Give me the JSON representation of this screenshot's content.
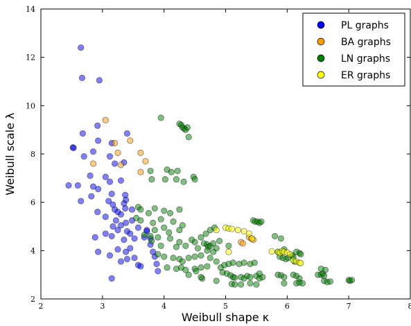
{
  "chart_data": {
    "type": "scatter",
    "title": "",
    "xlabel": "Weibull shape κ",
    "ylabel": "Weibull scale λ",
    "xlim": [
      2,
      8
    ],
    "ylim": [
      2,
      14
    ],
    "xticks": [
      "2",
      "3",
      "4",
      "5",
      "6",
      "7",
      "8"
    ],
    "yticks": [
      "2",
      "4",
      "6",
      "8",
      "10",
      "12",
      "14"
    ],
    "xtick_values": [
      2,
      3,
      4,
      5,
      6,
      7,
      8
    ],
    "ytick_values": [
      2,
      4,
      6,
      8,
      10,
      12,
      14
    ],
    "grid": false,
    "legend_position": "top-right",
    "series": [
      {
        "name": "PL graphs",
        "color": "#0000ff",
        "points": [
          [
            2.65,
            12.4
          ],
          [
            2.67,
            11.15
          ],
          [
            2.95,
            11.05
          ],
          [
            2.52,
            8.27
          ],
          [
            2.53,
            8.25
          ],
          [
            2.68,
            8.85
          ],
          [
            2.92,
            9.17
          ],
          [
            2.7,
            7.9
          ],
          [
            2.85,
            8.1
          ],
          [
            2.93,
            8.55
          ],
          [
            3.15,
            8.45
          ],
          [
            3.4,
            8.85
          ],
          [
            3.35,
            7.65
          ],
          [
            3.12,
            7.9
          ],
          [
            3.2,
            7.6
          ],
          [
            2.8,
            7.1
          ],
          [
            3.05,
            7.05
          ],
          [
            3.12,
            6.85
          ],
          [
            3.3,
            6.9
          ],
          [
            2.45,
            6.7
          ],
          [
            2.6,
            6.7
          ],
          [
            2.85,
            6.65
          ],
          [
            2.93,
            6.55
          ],
          [
            3.15,
            6.35
          ],
          [
            3.37,
            6.3
          ],
          [
            3.38,
            6.1
          ],
          [
            3.35,
            5.95
          ],
          [
            3.37,
            5.75
          ],
          [
            2.65,
            6.05
          ],
          [
            2.82,
            6.25
          ],
          [
            3.1,
            6.05
          ],
          [
            3.17,
            5.9
          ],
          [
            3.2,
            5.7
          ],
          [
            3.25,
            5.6
          ],
          [
            3.3,
            5.5
          ],
          [
            3.48,
            5.7
          ],
          [
            2.92,
            5.6
          ],
          [
            3.05,
            5.4
          ],
          [
            3.22,
            5.25
          ],
          [
            3.3,
            5.05
          ],
          [
            3.38,
            5.15
          ],
          [
            3.48,
            5.25
          ],
          [
            3.17,
            5.0
          ],
          [
            3.25,
            4.85
          ],
          [
            3.4,
            4.8
          ],
          [
            3.45,
            4.7
          ],
          [
            3.58,
            4.95
          ],
          [
            3.72,
            4.85
          ],
          [
            3.05,
            4.7
          ],
          [
            2.88,
            4.55
          ],
          [
            3.15,
            4.6
          ],
          [
            3.35,
            4.45
          ],
          [
            3.52,
            4.5
          ],
          [
            3.68,
            4.55
          ],
          [
            3.72,
            4.8
          ],
          [
            3.78,
            4.5
          ],
          [
            3.25,
            4.05
          ],
          [
            3.38,
            3.95
          ],
          [
            3.45,
            4.1
          ],
          [
            3.52,
            3.7
          ],
          [
            3.58,
            3.4
          ],
          [
            3.62,
            3.35
          ],
          [
            3.78,
            4.25
          ],
          [
            3.82,
            3.95
          ],
          [
            3.85,
            3.75
          ],
          [
            3.88,
            3.45
          ],
          [
            3.9,
            3.15
          ],
          [
            2.93,
            3.95
          ],
          [
            3.12,
            3.8
          ],
          [
            3.4,
            3.65
          ],
          [
            3.15,
            2.85
          ],
          [
            3.3,
            3.55
          ]
        ]
      },
      {
        "name": "BA graphs",
        "color": "#ff9900",
        "points": [
          [
            3.05,
            9.4
          ],
          [
            3.2,
            8.45
          ],
          [
            3.45,
            8.55
          ],
          [
            3.25,
            8.05
          ],
          [
            3.62,
            8.05
          ],
          [
            2.85,
            7.6
          ],
          [
            3.3,
            7.55
          ],
          [
            3.62,
            7.25
          ],
          [
            3.7,
            7.7
          ],
          [
            5.25,
            4.35
          ],
          [
            5.28,
            4.3
          ],
          [
            5.38,
            4.55
          ],
          [
            5.42,
            4.5
          ],
          [
            5.45,
            4.45
          ]
        ]
      },
      {
        "name": "LN graphs",
        "color": "#008000",
        "points": [
          [
            3.95,
            9.5
          ],
          [
            4.25,
            9.25
          ],
          [
            4.28,
            9.2
          ],
          [
            4.3,
            9.1
          ],
          [
            4.33,
            9.05
          ],
          [
            4.35,
            9.0
          ],
          [
            4.38,
            9.1
          ],
          [
            4.4,
            8.7
          ],
          [
            3.78,
            7.3
          ],
          [
            4.05,
            7.35
          ],
          [
            4.12,
            7.25
          ],
          [
            4.22,
            7.3
          ],
          [
            4.48,
            7.05
          ],
          [
            4.5,
            6.95
          ],
          [
            3.8,
            6.95
          ],
          [
            4.02,
            6.95
          ],
          [
            4.2,
            6.95
          ],
          [
            4.32,
            6.85
          ],
          [
            3.58,
            5.8
          ],
          [
            3.62,
            5.7
          ],
          [
            3.75,
            5.55
          ],
          [
            3.85,
            5.75
          ],
          [
            4.0,
            5.65
          ],
          [
            4.1,
            5.55
          ],
          [
            4.25,
            5.7
          ],
          [
            3.55,
            5.35
          ],
          [
            3.62,
            5.25
          ],
          [
            3.82,
            5.15
          ],
          [
            3.95,
            5.3
          ],
          [
            4.15,
            5.2
          ],
          [
            4.3,
            5.05
          ],
          [
            3.85,
            4.85
          ],
          [
            4.0,
            4.95
          ],
          [
            4.08,
            4.75
          ],
          [
            4.25,
            4.85
          ],
          [
            3.68,
            4.65
          ],
          [
            3.78,
            4.6
          ],
          [
            3.9,
            4.55
          ],
          [
            4.1,
            4.5
          ],
          [
            4.45,
            4.45
          ],
          [
            4.5,
            4.35
          ],
          [
            4.6,
            4.55
          ],
          [
            4.65,
            4.3
          ],
          [
            4.7,
            4.25
          ],
          [
            4.72,
            4.15
          ],
          [
            4.75,
            4.2
          ],
          [
            4.8,
            4.3
          ],
          [
            4.85,
            4.1
          ],
          [
            4.9,
            4.4
          ],
          [
            4.68,
            4.7
          ],
          [
            4.75,
            4.85
          ],
          [
            4.82,
            4.95
          ],
          [
            4.25,
            4.35
          ],
          [
            4.35,
            4.2
          ],
          [
            4.55,
            4.1
          ],
          [
            4.7,
            4.0
          ],
          [
            4.8,
            3.95
          ],
          [
            3.8,
            4.4
          ],
          [
            3.95,
            4.2
          ],
          [
            4.2,
            4.15
          ],
          [
            3.9,
            3.85
          ],
          [
            4.0,
            3.75
          ],
          [
            4.15,
            3.7
          ],
          [
            4.25,
            3.65
          ],
          [
            4.3,
            3.55
          ],
          [
            4.4,
            3.7
          ],
          [
            4.5,
            3.75
          ],
          [
            4.6,
            3.8
          ],
          [
            4.75,
            3.7
          ],
          [
            4.85,
            3.55
          ],
          [
            4.05,
            3.3
          ],
          [
            4.2,
            3.25
          ],
          [
            4.28,
            3.3
          ],
          [
            4.35,
            3.2
          ],
          [
            4.5,
            3.25
          ],
          [
            4.6,
            3.3
          ],
          [
            4.7,
            3.35
          ],
          [
            4.92,
            3.3
          ],
          [
            4.98,
            3.4
          ],
          [
            5.05,
            3.45
          ],
          [
            5.12,
            3.5
          ],
          [
            5.22,
            3.45
          ],
          [
            5.3,
            3.5
          ],
          [
            5.4,
            3.45
          ],
          [
            5.47,
            3.5
          ],
          [
            4.95,
            3.1
          ],
          [
            5.02,
            3.05
          ],
          [
            5.08,
            2.98
          ],
          [
            5.12,
            2.9
          ],
          [
            5.15,
            2.88
          ],
          [
            5.25,
            2.9
          ],
          [
            5.3,
            2.85
          ],
          [
            5.35,
            2.95
          ],
          [
            5.4,
            2.9
          ],
          [
            5.5,
            2.95
          ],
          [
            5.55,
            2.85
          ],
          [
            5.6,
            2.9
          ],
          [
            5.1,
            2.62
          ],
          [
            5.15,
            2.6
          ],
          [
            5.25,
            2.6
          ],
          [
            5.4,
            2.65
          ],
          [
            5.5,
            2.6
          ],
          [
            5.55,
            3.05
          ],
          [
            5.45,
            5.25
          ],
          [
            5.48,
            5.2
          ],
          [
            5.52,
            5.2
          ],
          [
            5.55,
            5.15
          ],
          [
            5.58,
            5.2
          ],
          [
            5.8,
            4.6
          ],
          [
            5.9,
            4.5
          ],
          [
            5.95,
            4.05
          ],
          [
            5.85,
            3.95
          ],
          [
            5.88,
            3.75
          ],
          [
            5.93,
            3.7
          ],
          [
            5.98,
            3.65
          ],
          [
            6.02,
            3.7
          ],
          [
            6.08,
            3.8
          ],
          [
            6.1,
            3.75
          ],
          [
            6.12,
            3.55
          ],
          [
            6.15,
            3.95
          ],
          [
            6.2,
            3.9
          ],
          [
            6.22,
            3.85
          ],
          [
            5.85,
            3.0
          ],
          [
            5.9,
            2.98
          ],
          [
            5.95,
            2.9
          ],
          [
            6.1,
            3.0
          ],
          [
            6.15,
            2.95
          ],
          [
            6.2,
            2.85
          ],
          [
            5.95,
            2.65
          ],
          [
            6.15,
            2.65
          ],
          [
            6.2,
            2.68
          ],
          [
            6.25,
            2.65
          ],
          [
            6.5,
            3.0
          ],
          [
            6.55,
            3.0
          ],
          [
            6.58,
            3.05
          ],
          [
            6.6,
            2.95
          ],
          [
            6.62,
            3.2
          ],
          [
            6.55,
            3.25
          ],
          [
            6.6,
            2.75
          ],
          [
            6.65,
            2.7
          ],
          [
            6.7,
            2.72
          ],
          [
            7.0,
            2.78
          ],
          [
            7.02,
            2.75
          ],
          [
            7.05,
            2.78
          ],
          [
            4.62,
            2.85
          ],
          [
            4.85,
            2.75
          ],
          [
            4.52,
            3.15
          ],
          [
            4.4,
            3.0
          ],
          [
            4.6,
            2.9
          ],
          [
            5.05,
            4.2
          ]
        ]
      },
      {
        "name": "ER graphs",
        "color": "#ffff00",
        "points": [
          [
            4.85,
            4.85
          ],
          [
            5.0,
            4.95
          ],
          [
            5.05,
            4.92
          ],
          [
            5.1,
            4.9
          ],
          [
            5.2,
            4.85
          ],
          [
            5.3,
            4.8
          ],
          [
            5.38,
            4.7
          ],
          [
            5.43,
            4.5
          ],
          [
            5.05,
            3.95
          ],
          [
            5.75,
            3.97
          ],
          [
            5.85,
            3.95
          ],
          [
            5.88,
            3.9
          ],
          [
            5.92,
            3.98
          ],
          [
            5.95,
            3.95
          ],
          [
            6.0,
            3.92
          ],
          [
            6.05,
            3.85
          ],
          [
            6.1,
            3.6
          ],
          [
            6.15,
            3.55
          ],
          [
            6.2,
            3.5
          ],
          [
            6.22,
            3.48
          ]
        ]
      }
    ]
  }
}
